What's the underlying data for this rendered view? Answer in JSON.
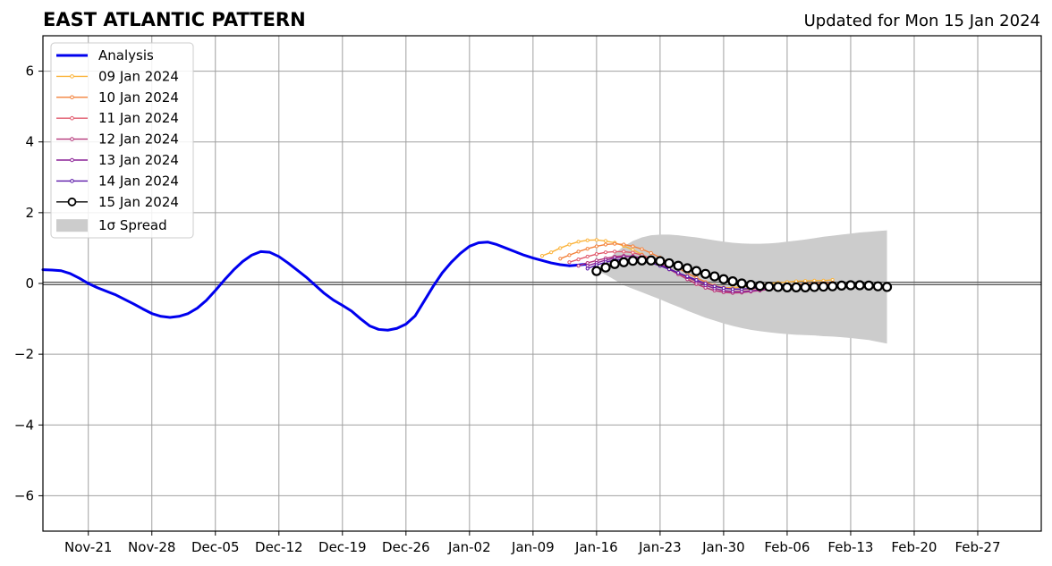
{
  "chart_data": {
    "type": "line",
    "title": "EAST ATLANTIC PATTERN",
    "subtitle": "Updated for Mon 15 Jan 2024",
    "xlabel": "",
    "ylabel": "",
    "xlim": [
      "2023-11-16",
      "2024-03-05"
    ],
    "ylim": [
      -7,
      7
    ],
    "grid": true,
    "legend_position": "top-left",
    "x_ticks": [
      "2023-11-21",
      "2023-11-28",
      "2023-12-05",
      "2023-12-12",
      "2023-12-19",
      "2023-12-26",
      "2024-01-02",
      "2024-01-09",
      "2024-01-16",
      "2024-01-23",
      "2024-01-30",
      "2024-02-06",
      "2024-02-13",
      "2024-02-20",
      "2024-02-27"
    ],
    "x_tick_labels": [
      "Nov-21",
      "Nov-28",
      "Dec-05",
      "Dec-12",
      "Dec-19",
      "Dec-26",
      "Jan-02",
      "Jan-09",
      "Jan-16",
      "Jan-23",
      "Jan-30",
      "Feb-06",
      "Feb-13",
      "Feb-20",
      "Feb-27"
    ],
    "y_ticks": [
      -6,
      -4,
      -2,
      0,
      2,
      4,
      6
    ],
    "y_tick_labels": [
      "−6",
      "−4",
      "−2",
      "0",
      "2",
      "4",
      "6"
    ],
    "legend": {
      "analysis": "Analysis",
      "spread": "1σ Spread"
    },
    "analysis": {
      "name": "Analysis",
      "color": "#0000ee",
      "start": "2023-11-16",
      "values": [
        0.39,
        0.38,
        0.36,
        0.28,
        0.15,
        0.0,
        -0.12,
        -0.22,
        -0.32,
        -0.45,
        -0.58,
        -0.72,
        -0.85,
        -0.93,
        -0.96,
        -0.93,
        -0.85,
        -0.7,
        -0.48,
        -0.2,
        0.1,
        0.38,
        0.62,
        0.8,
        0.9,
        0.88,
        0.76,
        0.58,
        0.38,
        0.18,
        -0.05,
        -0.28,
        -0.47,
        -0.62,
        -0.78,
        -1.0,
        -1.2,
        -1.3,
        -1.32,
        -1.27,
        -1.15,
        -0.92,
        -0.5,
        -0.08,
        0.3,
        0.6,
        0.85,
        1.05,
        1.15,
        1.17,
        1.1,
        1.0,
        0.9,
        0.8,
        0.72,
        0.65,
        0.58,
        0.53,
        0.5,
        0.52,
        0.55
      ]
    },
    "forecasts": [
      {
        "name": "09 Jan 2024",
        "color": "#fbb33a",
        "start": "2024-01-10",
        "values": [
          0.78,
          0.88,
          1.0,
          1.1,
          1.18,
          1.22,
          1.23,
          1.2,
          1.15,
          1.06,
          0.95,
          0.82,
          0.68,
          0.53,
          0.4,
          0.28,
          0.16,
          0.06,
          -0.02,
          -0.08,
          -0.12,
          -0.12,
          -0.1,
          -0.07,
          -0.04,
          0.0,
          0.02,
          0.04,
          0.06,
          0.07,
          0.08,
          0.08,
          0.1
        ]
      },
      {
        "name": "10 Jan 2024",
        "color": "#f3813a",
        "start": "2024-01-12",
        "values": [
          0.7,
          0.8,
          0.9,
          0.98,
          1.05,
          1.1,
          1.12,
          1.1,
          1.05,
          0.97,
          0.86,
          0.73,
          0.58,
          0.43,
          0.29,
          0.16,
          0.04,
          -0.06,
          -0.12,
          -0.16,
          -0.17,
          -0.16,
          -0.13,
          -0.1,
          -0.07,
          -0.05,
          -0.03,
          -0.01,
          0.0,
          0.01,
          0.02
        ]
      },
      {
        "name": "11 Jan 2024",
        "color": "#e1586b",
        "start": "2024-01-13",
        "values": [
          0.6,
          0.68,
          0.76,
          0.83,
          0.88,
          0.9,
          0.9,
          0.87,
          0.8,
          0.7,
          0.57,
          0.42,
          0.27,
          0.12,
          -0.02,
          -0.12,
          -0.2,
          -0.24,
          -0.26,
          -0.25,
          -0.22,
          -0.19,
          -0.16,
          -0.13,
          -0.11,
          -0.1,
          -0.09,
          -0.08
        ]
      },
      {
        "name": "12 Jan 2024",
        "color": "#b5367a",
        "start": "2024-01-14",
        "values": [
          0.5,
          0.58,
          0.65,
          0.71,
          0.76,
          0.78,
          0.77,
          0.72,
          0.64,
          0.53,
          0.4,
          0.26,
          0.12,
          -0.01,
          -0.12,
          -0.2,
          -0.25,
          -0.27,
          -0.26,
          -0.23,
          -0.2,
          -0.17,
          -0.14,
          -0.12,
          -0.11,
          -0.1,
          -0.09
        ]
      },
      {
        "name": "13 Jan 2024",
        "color": "#8c2297",
        "start": "2024-01-15",
        "values": [
          0.5,
          0.58,
          0.66,
          0.72,
          0.76,
          0.76,
          0.72,
          0.64,
          0.54,
          0.42,
          0.3,
          0.18,
          0.06,
          -0.05,
          -0.14,
          -0.2,
          -0.23,
          -0.23,
          -0.21,
          -0.18,
          -0.15,
          -0.13,
          -0.11,
          -0.1,
          -0.09
        ]
      },
      {
        "name": "14 Jan 2024",
        "color": "#5a17a8",
        "start": "2024-01-15",
        "values": [
          0.42,
          0.52,
          0.6,
          0.66,
          0.68,
          0.67,
          0.64,
          0.58,
          0.5,
          0.4,
          0.3,
          0.2,
          0.1,
          0.0,
          -0.08,
          -0.13,
          -0.16,
          -0.16,
          -0.14,
          -0.12,
          -0.11,
          -0.1,
          -0.1,
          -0.1,
          -0.1
        ]
      }
    ],
    "current": {
      "name": "15 Jan 2024",
      "start": "2024-01-16",
      "values": [
        0.35,
        0.45,
        0.55,
        0.6,
        0.64,
        0.65,
        0.65,
        0.63,
        0.57,
        0.5,
        0.43,
        0.35,
        0.27,
        0.2,
        0.12,
        0.06,
        0.0,
        -0.04,
        -0.07,
        -0.09,
        -0.1,
        -0.11,
        -0.11,
        -0.11,
        -0.1,
        -0.09,
        -0.08,
        -0.06,
        -0.05,
        -0.05,
        -0.06,
        -0.08,
        -0.1
      ]
    },
    "spread": {
      "name": "1σ Spread",
      "color": "#cccccc",
      "start": "2024-01-16",
      "upper": [
        0.35,
        0.6,
        0.85,
        1.05,
        1.2,
        1.3,
        1.36,
        1.38,
        1.38,
        1.36,
        1.33,
        1.3,
        1.26,
        1.22,
        1.18,
        1.15,
        1.13,
        1.12,
        1.12,
        1.13,
        1.15,
        1.18,
        1.21,
        1.24,
        1.28,
        1.32,
        1.35,
        1.38,
        1.41,
        1.44,
        1.46,
        1.48,
        1.5
      ],
      "lower": [
        0.35,
        0.25,
        0.1,
        -0.05,
        -0.15,
        -0.25,
        -0.35,
        -0.45,
        -0.56,
        -0.66,
        -0.77,
        -0.87,
        -0.97,
        -1.05,
        -1.13,
        -1.2,
        -1.26,
        -1.31,
        -1.35,
        -1.38,
        -1.41,
        -1.43,
        -1.45,
        -1.46,
        -1.47,
        -1.49,
        -1.5,
        -1.52,
        -1.54,
        -1.57,
        -1.6,
        -1.65,
        -1.7
      ]
    }
  }
}
